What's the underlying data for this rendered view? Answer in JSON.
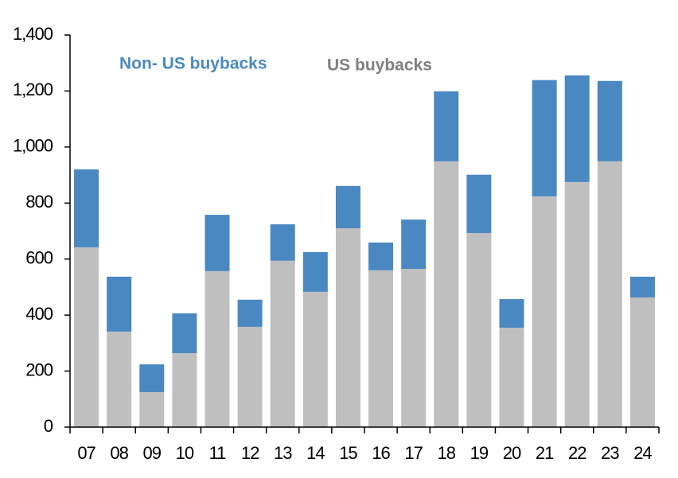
{
  "chart_data": {
    "type": "stacked-bar",
    "categories": [
      "07",
      "08",
      "09",
      "10",
      "11",
      "12",
      "13",
      "14",
      "15",
      "16",
      "17",
      "18",
      "19",
      "20",
      "21",
      "22",
      "23",
      "24"
    ],
    "series": [
      {
        "name": "US buybacks",
        "color": "#bfbfbf",
        "values": [
          642,
          341,
          125,
          264,
          557,
          358,
          594,
          483,
          710,
          560,
          565,
          949,
          693,
          355,
          824,
          875,
          949,
          463
        ]
      },
      {
        "name": "Non- US buybacks",
        "color": "#4a88c2",
        "values": [
          278,
          196,
          99,
          142,
          201,
          97,
          130,
          142,
          151,
          99,
          176,
          250,
          208,
          102,
          415,
          381,
          287,
          74
        ]
      }
    ],
    "ylim": [
      0,
      1400
    ],
    "yticks": [
      0,
      200,
      400,
      600,
      800,
      {
        "value": 1000,
        "label": "1,000"
      },
      {
        "value": 1200,
        "label": "1,200"
      },
      {
        "value": 1400,
        "label": "1,400"
      }
    ]
  }
}
